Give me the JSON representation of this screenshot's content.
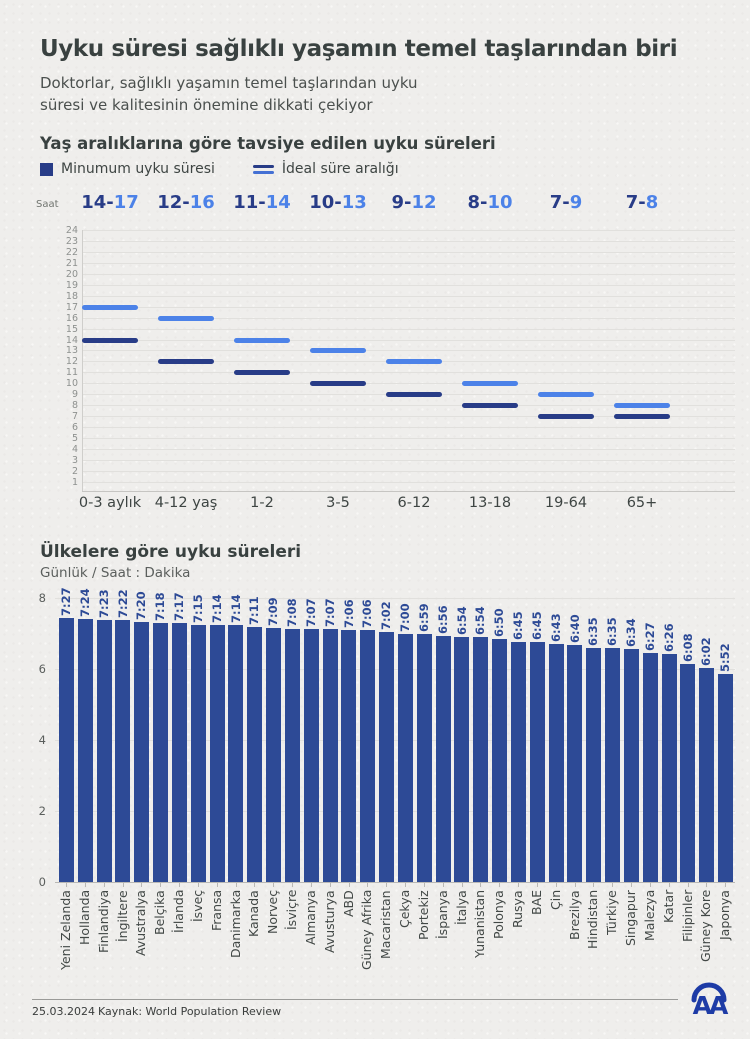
{
  "header": {
    "title": "Uyku süresi sağlıklı yaşamın temel taşlarından biri",
    "subtitle_lines": [
      "Doktorlar, sağlıklı yaşamın temel taşlarından uyku",
      "süresi ve kalitesinin önemine dikkati çekiyor"
    ]
  },
  "colors": {
    "background": "#efeeec",
    "heading": "#394140",
    "navy": "#283c87",
    "bright_blue": "#4c82e8",
    "bar_blue": "#2d4a96",
    "grid": "#e1e0dd",
    "logo_blue": "#1d3ba6"
  },
  "chart_data": [
    {
      "type": "range",
      "title": "Yaş aralıklarına göre tavsiye edilen uyku süreleri",
      "ylabel": "Saat",
      "ylim": [
        1,
        24
      ],
      "ytick_step": 1,
      "grid": true,
      "legend_position": "top",
      "legend": [
        {
          "name": "Minumum uyku süresi",
          "swatch": "square"
        },
        {
          "name": "İdeal süre aralığı",
          "swatch": "lines"
        }
      ],
      "categories": [
        "0-3 aylık",
        "4-12 yaş",
        "1-2",
        "3-5",
        "6-12",
        "13-18",
        "19-64",
        "65+"
      ],
      "series": [
        {
          "name": "Minumum uyku süresi",
          "color": "#283c87",
          "values": [
            14,
            12,
            11,
            10,
            9,
            8,
            7,
            7
          ]
        },
        {
          "name": "İdeal süre aralığı",
          "color": "#4c82e8",
          "values": [
            17,
            16,
            14,
            13,
            12,
            10,
            9,
            8
          ]
        }
      ],
      "range_labels": [
        "14-17",
        "12-16",
        "11-14",
        "10-13",
        "9-12",
        "8-10",
        "7-9",
        "7-8"
      ]
    },
    {
      "type": "bar",
      "title": "Ülkelere göre uyku süreleri",
      "subtitle": "Günlük / Saat : Dakika",
      "ylim": [
        0,
        8
      ],
      "yticks": [
        0,
        2,
        4,
        6,
        8
      ],
      "grid": true,
      "bar_color": "#2d4a96",
      "categories": [
        "Yeni Zelanda",
        "Hollanda",
        "Finlandiya",
        "İngiltere",
        "Avustralya",
        "Belçika",
        "İrlanda",
        "İsveç",
        "Fransa",
        "Danimarka",
        "Kanada",
        "Norveç",
        "İsviçre",
        "Almanya",
        "Avusturya",
        "ABD",
        "Güney Afrika",
        "Macaristan",
        "Çekya",
        "Portekiz",
        "İspanya",
        "İtalya",
        "Yunanistan",
        "Polonya",
        "Rusya",
        "BAE",
        "Çin",
        "Brezilya",
        "Hindistan",
        "Türkiye",
        "Singapur",
        "Malezya",
        "Katar",
        "Filipinler",
        "Güney Kore",
        "Japonya"
      ],
      "values": [
        "7:27",
        "7:24",
        "7:23",
        "7:22",
        "7:20",
        "7:18",
        "7:17",
        "7:15",
        "7:14",
        "7:14",
        "7:11",
        "7:09",
        "7:08",
        "7:07",
        "7:07",
        "7:06",
        "7:06",
        "7:02",
        "7:00",
        "6:59",
        "6:56",
        "6:54",
        "6:54",
        "6:50",
        "6:45",
        "6:45",
        "6:43",
        "6:40",
        "6:35",
        "6:35",
        "6:34",
        "6:27",
        "6:26",
        "6:08",
        "6:02",
        "5:52"
      ]
    }
  ],
  "footer": {
    "date": "25.03.2024",
    "source": "Kaynak: World Population Review",
    "logo_text": "AA"
  }
}
